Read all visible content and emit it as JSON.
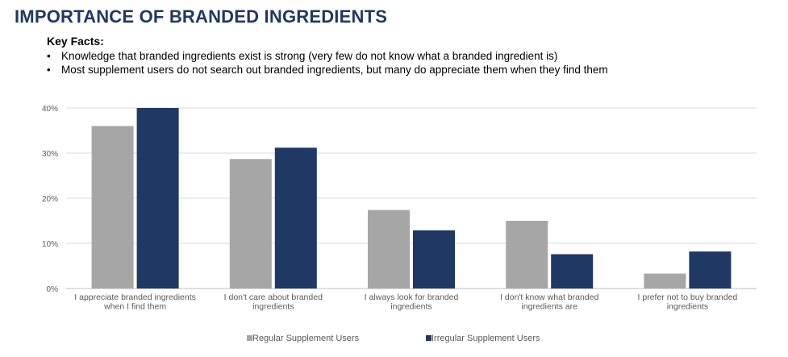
{
  "page": {
    "title": "IMPORTANCE OF BRANDED INGREDIENTS",
    "key_facts_heading": "Key Facts:",
    "key_facts": [
      "Knowledge that branded ingredients exist is strong (very few do not know what a branded ingredient is)",
      "Most supplement users do not search out branded ingredients, but many do appreciate them when they find them"
    ]
  },
  "chart_data": {
    "type": "bar",
    "categories": [
      [
        "I appreciate branded ingredients",
        "when I find them"
      ],
      [
        "I don't care about branded",
        "ingredients"
      ],
      [
        "I always look for branded",
        "ingredients"
      ],
      [
        "I don't know what branded",
        "ingredients are"
      ],
      [
        "I prefer not to buy branded",
        "ingredients"
      ]
    ],
    "series": [
      {
        "name": "Regular Supplement Users",
        "color": "#a6a6a6",
        "values": [
          36,
          28.7,
          17.4,
          15,
          3.3
        ]
      },
      {
        "name": "Irregular Supplement Users",
        "color": "#1f3864",
        "values": [
          40,
          31.2,
          12.9,
          7.6,
          8.2
        ]
      }
    ],
    "ylim": [
      0,
      40
    ],
    "yticks": [
      "0%",
      "10%",
      "20%",
      "30%",
      "40%"
    ],
    "grid": true,
    "legend_position": "bottom"
  }
}
